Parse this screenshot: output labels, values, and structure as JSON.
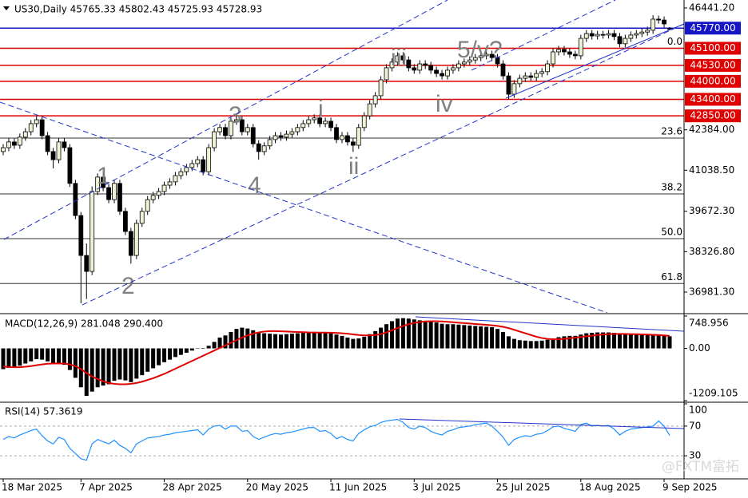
{
  "chart_data": [
    {
      "type": "candlestick",
      "title": "US30,Daily  45765.33 45802.43 45725.93 45728.93",
      "categories": [
        "18 Mar 2025",
        null,
        null,
        null,
        null,
        null,
        null,
        null,
        null,
        null,
        null,
        null,
        null,
        null,
        "7 Apr 2025",
        null,
        null,
        null,
        null,
        null,
        null,
        null,
        null,
        null,
        null,
        null,
        null,
        null,
        null,
        "28 Apr 2025",
        null,
        null,
        null,
        null,
        null,
        null,
        null,
        null,
        null,
        null,
        null,
        null,
        null,
        null,
        "20 May 2025",
        null,
        null,
        null,
        null,
        null,
        null,
        null,
        null,
        null,
        null,
        null,
        null,
        null,
        null,
        "11 Jun 2025",
        null,
        null,
        null,
        null,
        null,
        null,
        null,
        null,
        null,
        null,
        null,
        null,
        null,
        null,
        "3 Jul 2025",
        null,
        null,
        null,
        null,
        null,
        null,
        null,
        null,
        null,
        null,
        null,
        null,
        null,
        null,
        "25 Jul 2025",
        null,
        null,
        null,
        null,
        null,
        null,
        null,
        null,
        null,
        null,
        null,
        null,
        null,
        null,
        "18 Aug 2025",
        null,
        null,
        null,
        null,
        null,
        null,
        null,
        null,
        null,
        null,
        null,
        null,
        null,
        null,
        "9 Sep 2025",
        null
      ],
      "open": [
        41660,
        41790,
        41980,
        41870,
        42140,
        42320,
        42590,
        42720,
        42190,
        41660,
        41390,
        41980,
        41790,
        40600,
        39530,
        38200,
        37670,
        40330,
        40810,
        40460,
        40060,
        40600,
        39670,
        39000,
        38200,
        39270,
        39670,
        40060,
        40200,
        40330,
        40540,
        40650,
        40860,
        40990,
        41130,
        41260,
        41390,
        40990,
        41790,
        42320,
        42460,
        42190,
        42670,
        42720,
        42320,
        42460,
        41920,
        41660,
        41850,
        42060,
        42190,
        42140,
        42240,
        42320,
        42460,
        42590,
        42720,
        42780,
        42590,
        42670,
        42460,
        42060,
        42190,
        41980,
        41870,
        42460,
        42850,
        43250,
        43520,
        44050,
        44450,
        44640,
        44850,
        44710,
        44450,
        44370,
        44580,
        44530,
        44370,
        44260,
        44180,
        44370,
        44450,
        44580,
        44640,
        44710,
        44790,
        44850,
        44900,
        44790,
        44580,
        44180,
        43570,
        43920,
        44100,
        44180,
        44130,
        44260,
        44320,
        44580,
        44980,
        45060,
        44980,
        44900,
        44850,
        45430,
        45590,
        45510,
        45560,
        45540,
        45590,
        45490,
        45250,
        45430,
        45540,
        45590,
        45640,
        45700,
        46070,
        46040,
        45765.33
      ],
      "high": [
        41910,
        42100,
        42100,
        42260,
        42440,
        42710,
        42840,
        42840,
        42310,
        41780,
        42100,
        42100,
        41910,
        40720,
        39650,
        38600,
        40500,
        40930,
        40930,
        40580,
        40720,
        40720,
        39790,
        39120,
        39390,
        39790,
        40180,
        40320,
        40450,
        40660,
        40770,
        40980,
        41110,
        41250,
        41380,
        41510,
        41510,
        41910,
        42440,
        42580,
        42580,
        42790,
        42840,
        42840,
        42580,
        42580,
        42040,
        41970,
        42180,
        42310,
        42310,
        42360,
        42440,
        42580,
        42710,
        42840,
        42900,
        42900,
        42790,
        42790,
        42580,
        42310,
        42310,
        42100,
        42580,
        42970,
        43370,
        43640,
        44170,
        44570,
        44760,
        44970,
        44970,
        44830,
        44570,
        44700,
        44700,
        44650,
        44490,
        44380,
        44490,
        44570,
        44700,
        44760,
        44830,
        44910,
        44970,
        45020,
        45020,
        44910,
        44700,
        44300,
        44040,
        44220,
        44300,
        44300,
        44380,
        44440,
        44700,
        45100,
        45180,
        45180,
        45100,
        45020,
        45550,
        45710,
        45710,
        45680,
        45680,
        45710,
        45710,
        45610,
        45550,
        45660,
        45710,
        45760,
        45820,
        46200,
        46190,
        46160,
        45802.43
      ],
      "low": [
        41540,
        41670,
        41750,
        41750,
        42020,
        42200,
        42470,
        42070,
        41540,
        41100,
        41270,
        41670,
        40480,
        39410,
        36610,
        36750,
        37550,
        40210,
        40340,
        39940,
        39940,
        39550,
        38880,
        37930,
        38080,
        39150,
        39550,
        39940,
        40080,
        40210,
        40420,
        40530,
        40740,
        40870,
        41010,
        41140,
        40870,
        40870,
        41670,
        42200,
        42070,
        42070,
        42550,
        42200,
        42200,
        41800,
        41390,
        41540,
        41730,
        41940,
        42020,
        42020,
        42120,
        42200,
        42340,
        42470,
        42600,
        42470,
        42470,
        42340,
        41940,
        41940,
        41860,
        41650,
        41750,
        42340,
        42730,
        43130,
        43400,
        43930,
        44330,
        44520,
        44590,
        44330,
        44250,
        44250,
        44410,
        44250,
        44140,
        44060,
        44060,
        44250,
        44330,
        44460,
        44520,
        44590,
        44670,
        44730,
        44670,
        44460,
        44060,
        43390,
        43450,
        43800,
        43980,
        44010,
        44010,
        44140,
        44200,
        44460,
        44860,
        44860,
        44780,
        44730,
        44730,
        45310,
        45390,
        45390,
        45420,
        45420,
        45370,
        45130,
        45130,
        45310,
        45420,
        45470,
        45520,
        45580,
        45920,
        45790,
        45725.93
      ],
      "close": [
        41790,
        41980,
        41870,
        42140,
        42320,
        42590,
        42720,
        42190,
        41660,
        41390,
        41980,
        41790,
        40600,
        39530,
        38200,
        37670,
        40330,
        40810,
        40460,
        40060,
        40600,
        39670,
        39000,
        38200,
        39270,
        39670,
        40060,
        40200,
        40330,
        40540,
        40650,
        40860,
        40990,
        41130,
        41260,
        41390,
        40990,
        41790,
        42320,
        42460,
        42190,
        42670,
        42720,
        42320,
        42460,
        41920,
        41660,
        41850,
        42060,
        42190,
        42140,
        42240,
        42320,
        42460,
        42590,
        42720,
        42780,
        42590,
        42670,
        42460,
        42060,
        42190,
        41980,
        41870,
        42460,
        42850,
        43250,
        43520,
        44050,
        44450,
        44640,
        44850,
        44710,
        44450,
        44370,
        44580,
        44530,
        44370,
        44260,
        44180,
        44370,
        44450,
        44580,
        44640,
        44710,
        44790,
        44850,
        44900,
        44790,
        44580,
        44180,
        43570,
        43920,
        44100,
        44180,
        44130,
        44260,
        44320,
        44580,
        44980,
        45060,
        44980,
        44900,
        44850,
        45430,
        45590,
        45510,
        45560,
        45540,
        45590,
        45490,
        45250,
        45430,
        45540,
        45590,
        45640,
        45700,
        46070,
        46040,
        45910,
        45728.93
      ],
      "up_color": "#eef3d6",
      "down_color": "#000000",
      "ylim": [
        36290,
        46707
      ],
      "yticks": [
        {
          "value": 46441.2,
          "label": "46441.20"
        },
        {
          "value": 42384,
          "label": "42384.00"
        },
        {
          "value": 41038.5,
          "label": "41038.50"
        },
        {
          "value": 39672.3,
          "label": "39672.30"
        },
        {
          "value": 38326.8,
          "label": "38326.80"
        },
        {
          "value": 36981.3,
          "label": "36981.30"
        }
      ],
      "levels": [
        {
          "value": 45770,
          "label": "45770.00",
          "color": "#1515c8"
        },
        {
          "value": 45100,
          "label": "45100.00",
          "color": "#e00000"
        },
        {
          "value": 44530,
          "label": "44530.00",
          "color": "#e00000"
        },
        {
          "value": 44000,
          "label": "44000.00",
          "color": "#e00000"
        },
        {
          "value": 43400,
          "label": "43400.00",
          "color": "#e00000"
        },
        {
          "value": 42850,
          "label": "42850.00",
          "color": "#e00000"
        }
      ],
      "fib_levels": [
        {
          "value": 45103,
          "label": "0.0"
        },
        {
          "value": 42110,
          "label": "23.6"
        },
        {
          "value": 40250,
          "label": "38.2"
        },
        {
          "value": 38762,
          "label": "50.0"
        },
        {
          "value": 37265,
          "label": "61.8"
        }
      ],
      "annotations": [
        "1",
        "2",
        "3",
        "4",
        "i",
        "ii",
        "iii",
        "iv",
        "5/v?"
      ],
      "watermark": "@FXTM富拓"
    },
    {
      "type": "macd",
      "title": "MACD(12,26,9) 281.048 290.400",
      "histogram": [
        -480,
        -450,
        -430,
        -400,
        -350,
        -300,
        -250,
        -260,
        -300,
        -350,
        -340,
        -380,
        -500,
        -680,
        -900,
        -1100,
        -1000,
        -900,
        -860,
        -830,
        -750,
        -720,
        -740,
        -780,
        -700,
        -620,
        -540,
        -460,
        -390,
        -320,
        -260,
        -200,
        -150,
        -100,
        -50,
        0,
        10,
        60,
        150,
        250,
        300,
        380,
        450,
        480,
        460,
        420,
        380,
        350,
        340,
        330,
        320,
        330,
        340,
        350,
        360,
        370,
        375,
        370,
        360,
        350,
        320,
        290,
        250,
        220,
        230,
        270,
        330,
        400,
        480,
        560,
        630,
        690,
        700,
        690,
        670,
        650,
        640,
        620,
        600,
        570,
        560,
        560,
        550,
        540,
        530,
        520,
        510,
        500,
        490,
        450,
        380,
        280,
        220,
        190,
        180,
        170,
        170,
        180,
        200,
        230,
        260,
        280,
        290,
        290,
        320,
        350,
        360,
        370,
        370,
        370,
        360,
        340,
        330,
        330,
        330,
        330,
        330,
        320,
        320,
        300,
        281.048
      ],
      "signal": [
        -420,
        -430,
        -435,
        -435,
        -425,
        -410,
        -390,
        -370,
        -355,
        -350,
        -348,
        -350,
        -370,
        -410,
        -480,
        -570,
        -650,
        -710,
        -760,
        -800,
        -820,
        -830,
        -830,
        -820,
        -800,
        -770,
        -730,
        -690,
        -640,
        -590,
        -530,
        -470,
        -410,
        -350,
        -290,
        -230,
        -170,
        -110,
        -50,
        10,
        70,
        130,
        190,
        250,
        300,
        340,
        370,
        390,
        400,
        400,
        395,
        390,
        385,
        380,
        375,
        370,
        368,
        366,
        365,
        363,
        358,
        350,
        340,
        325,
        310,
        300,
        300,
        310,
        330,
        370,
        420,
        470,
        520,
        560,
        590,
        610,
        625,
        630,
        630,
        625,
        615,
        605,
        595,
        585,
        575,
        565,
        555,
        545,
        535,
        520,
        500,
        470,
        430,
        390,
        350,
        310,
        270,
        240,
        220,
        210,
        210,
        220,
        235,
        250,
        265,
        280,
        295,
        310,
        320,
        330,
        335,
        335,
        333,
        330,
        328,
        325,
        320,
        315,
        310,
        300,
        290.4
      ],
      "histogram_color": "#000000",
      "signal_color": "#e00000",
      "ylim": [
        -1209.105,
        748.956
      ],
      "yticks": [
        748.956,
        {
          "value": 0,
          "label": "0.00"
        },
        -1209.105
      ]
    },
    {
      "type": "line",
      "title": "RSI(14) 57.3619",
      "values": [
        52,
        56,
        54,
        58,
        61,
        64,
        66,
        57,
        50,
        46,
        55,
        52,
        40,
        33,
        26,
        24,
        46,
        52,
        49,
        46,
        51,
        44,
        40,
        34,
        46,
        50,
        54,
        55,
        56,
        58,
        59,
        61,
        62,
        63,
        64,
        65,
        58,
        66,
        70,
        71,
        66,
        70,
        70,
        63,
        64,
        56,
        52,
        55,
        58,
        60,
        59,
        61,
        62,
        64,
        66,
        68,
        68,
        63,
        64,
        60,
        53,
        56,
        52,
        50,
        60,
        65,
        69,
        71,
        75,
        77,
        78,
        79,
        75,
        68,
        66,
        70,
        68,
        63,
        60,
        58,
        63,
        65,
        68,
        69,
        70,
        72,
        73,
        74,
        70,
        63,
        55,
        44,
        52,
        55,
        57,
        56,
        59,
        60,
        64,
        69,
        70,
        67,
        65,
        63,
        72,
        74,
        70,
        71,
        70,
        71,
        66,
        58,
        63,
        66,
        67,
        68,
        69,
        70,
        77,
        70,
        57.3619
      ],
      "color": "#1e90ff",
      "ylim": [
        0,
        100
      ],
      "yticks": [
        100,
        70,
        30
      ]
    }
  ]
}
